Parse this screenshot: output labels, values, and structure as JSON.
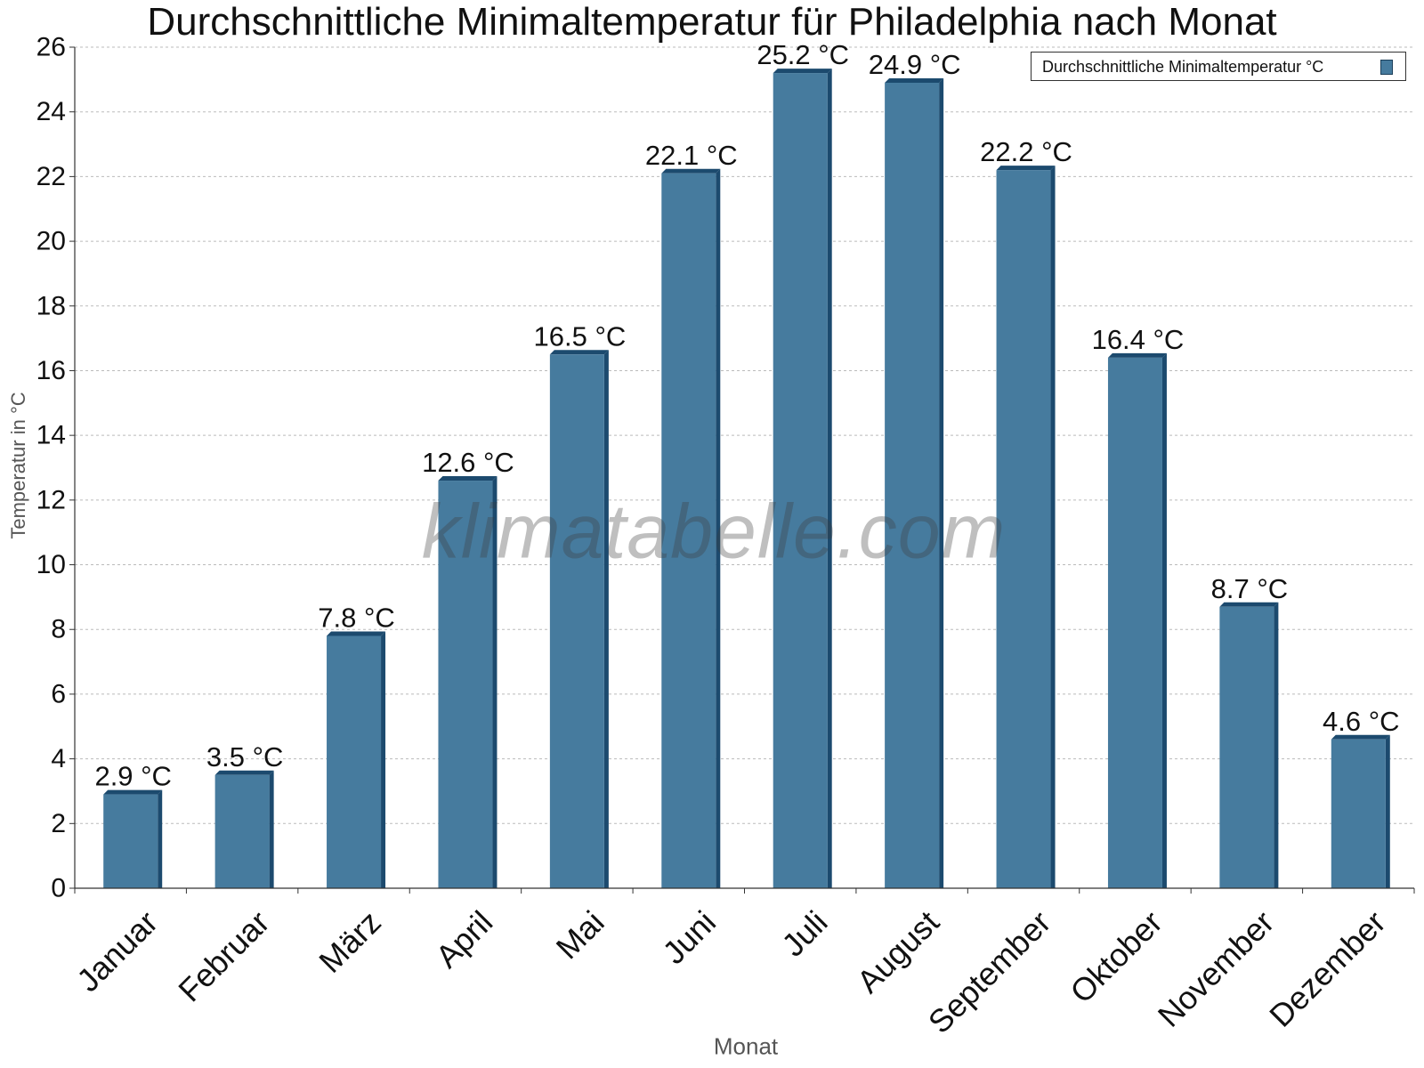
{
  "chart_data": {
    "type": "bar",
    "title": "Durchschnittliche Minimaltemperatur für Philadelphia nach Monat",
    "xlabel": "Monat",
    "ylabel": "Temperatur in °C",
    "categories": [
      "Januar",
      "Februar",
      "März",
      "April",
      "Mai",
      "Juni",
      "Juli",
      "August",
      "September",
      "Oktober",
      "November",
      "Dezember"
    ],
    "series": [
      {
        "name": "Durchschnittliche Minimaltemperatur °C",
        "values": [
          2.9,
          3.5,
          7.8,
          12.6,
          16.5,
          22.1,
          25.2,
          24.9,
          22.2,
          16.4,
          8.7,
          4.6
        ],
        "data_labels": [
          "2.9 °C",
          "3.5 °C",
          "7.8 °C",
          "12.6 °C",
          "16.5 °C",
          "22.1 °C",
          "25.2 °C",
          "24.9 °C",
          "22.2 °C",
          "16.4 °C",
          "8.7 °C",
          "4.6 °C"
        ],
        "color": "#467b9e",
        "edge_color": "#1c4a6e"
      }
    ],
    "ylim": [
      0,
      26
    ],
    "yticks": [
      0,
      2,
      4,
      6,
      8,
      10,
      12,
      14,
      16,
      18,
      20,
      22,
      24,
      26
    ],
    "grid": true,
    "legend_position": "top-right",
    "watermark": "klimatabelle.com"
  }
}
